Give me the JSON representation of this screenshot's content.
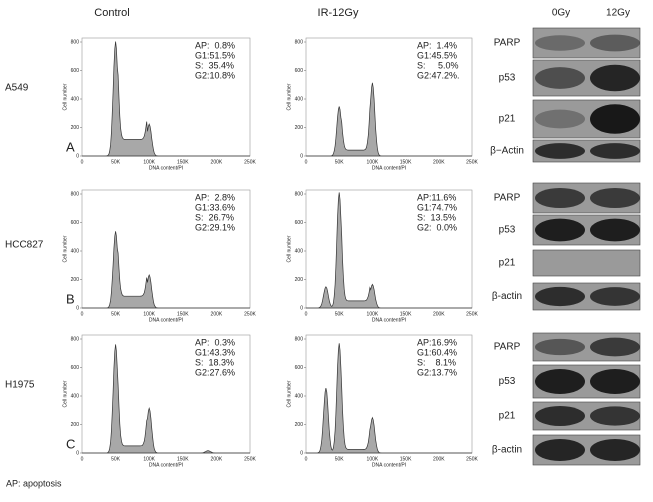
{
  "headers": {
    "conditions": [
      "Control",
      "IR-12Gy"
    ],
    "doses": [
      "0Gy",
      "12Gy"
    ]
  },
  "axes": {
    "y_label": "Cell number",
    "x_label": "DNA content/PI",
    "yticks": [
      "800",
      "600",
      "400",
      "200",
      "0"
    ],
    "xticks": [
      "0",
      "50K",
      "100K",
      "150K",
      "200K",
      "250K"
    ]
  },
  "rows": [
    {
      "cell_line": "A549",
      "letter": "A",
      "plots": [
        {
          "stats": [
            "AP:  0.8%",
            "G1:51.5%",
            "S:  35.4%",
            "G2:10.8%"
          ]
        },
        {
          "stats": [
            "AP:  1.4%",
            "G1:45.5%",
            "S:     5.0%",
            "G2:47.2%."
          ]
        }
      ],
      "blots": [
        "PARP",
        "p53",
        "p21",
        "β−Actin"
      ]
    },
    {
      "cell_line": "HCC827",
      "letter": "B",
      "plots": [
        {
          "stats": [
            "AP:  2.8%",
            "G1:33.6%",
            "S:  26.7%",
            "G2:29.1%"
          ]
        },
        {
          "stats": [
            "AP:11.6%",
            "G1:74.7%",
            "S:  13.5%",
            "G2:  0.0%"
          ]
        }
      ],
      "blots": [
        "PARP",
        "p53",
        "p21",
        "β-actin"
      ]
    },
    {
      "cell_line": "H1975",
      "letter": "C",
      "plots": [
        {
          "stats": [
            "AP:  0.3%",
            "G1:43.3%",
            "S:  18.3%",
            "G2:27.6%"
          ]
        },
        {
          "stats": [
            "AP:16.9%",
            "G1:60.4%",
            "S:    8.1%",
            "G2:13.7%"
          ]
        }
      ],
      "blots": [
        "PARP",
        "p53",
        "p21",
        "β-actin"
      ]
    }
  ],
  "footnote": "AP: apoptosis"
}
